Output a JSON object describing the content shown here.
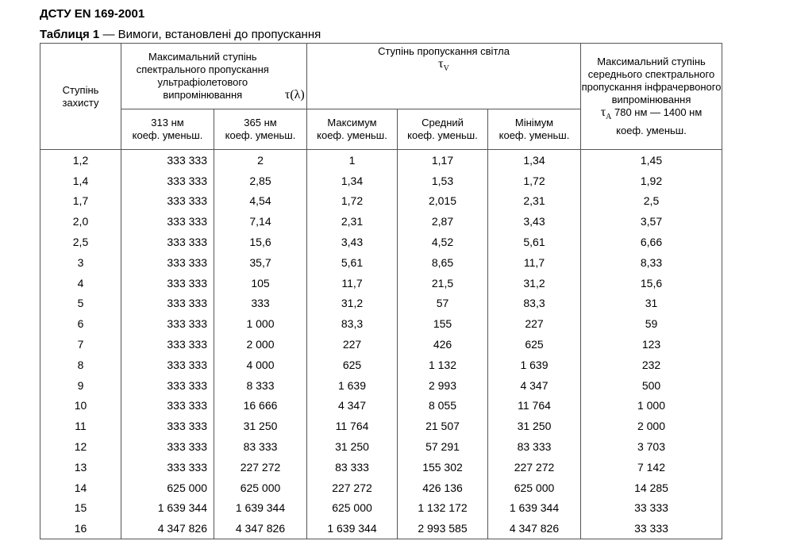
{
  "header": {
    "title": "ДСТУ EN 169-2001",
    "caption_label": "Таблиця 1",
    "caption_text": "— Вимоги, встановлені до пропускання"
  },
  "table": {
    "col_protection": "Ступінь захисту",
    "group_uv": {
      "text": "Максимальний ступінь спектрального пропускання ультрафіолетового випромінювання",
      "symbol": "τ(λ)"
    },
    "group_vis": {
      "text": "Ступінь пропускання світла",
      "symbol": "τ",
      "symbol_sub": "V"
    },
    "col_ir": {
      "text": "Максимальний ступінь середнього спектрального пропускання інфрачервоного випромінювання",
      "symbol": "τ",
      "symbol_sub": "A",
      "range": "780 нм — 1400 нм",
      "unit": "коеф. уменьш."
    },
    "sub_headers": [
      [
        "313 нм",
        "коеф. уменьш."
      ],
      [
        "365 нм",
        "коеф. уменьш."
      ],
      [
        "Максимум",
        "коеф. уменьш."
      ],
      [
        "Средний",
        "коеф. уменьш."
      ],
      [
        "Мінімум",
        "коеф. уменьш."
      ]
    ],
    "rows": [
      [
        "1,2",
        "333 333",
        "2",
        "1",
        "1,17",
        "1,34",
        "1,45"
      ],
      [
        "1,4",
        "333 333",
        "2,85",
        "1,34",
        "1,53",
        "1,72",
        "1,92"
      ],
      [
        "1,7",
        "333 333",
        "4,54",
        "1,72",
        "2,015",
        "2,31",
        "2,5"
      ],
      [
        "2,0",
        "333 333",
        "7,14",
        "2,31",
        "2,87",
        "3,43",
        "3,57"
      ],
      [
        "2,5",
        "333 333",
        "15,6",
        "3,43",
        "4,52",
        "5,61",
        "6,66"
      ],
      [
        "3",
        "333 333",
        "35,7",
        "5,61",
        "8,65",
        "11,7",
        "8,33"
      ],
      [
        "4",
        "333 333",
        "105",
        "11,7",
        "21,5",
        "31,2",
        "15,6"
      ],
      [
        "5",
        "333 333",
        "333",
        "31,2",
        "57",
        "83,3",
        "31"
      ],
      [
        "6",
        "333 333",
        "1 000",
        "83,3",
        "155",
        "227",
        "59"
      ],
      [
        "7",
        "333 333",
        "2 000",
        "227",
        "426",
        "625",
        "123"
      ],
      [
        "8",
        "333 333",
        "4 000",
        "625",
        "1 132",
        "1 639",
        "232"
      ],
      [
        "9",
        "333 333",
        "8 333",
        "1 639",
        "2 993",
        "4 347",
        "500"
      ],
      [
        "10",
        "333 333",
        "16 666",
        "4 347",
        "8 055",
        "11 764",
        "1 000"
      ],
      [
        "11",
        "333 333",
        "31 250",
        "11 764",
        "21 507",
        "31 250",
        "2 000"
      ],
      [
        "12",
        "333 333",
        "83 333",
        "31 250",
        "57 291",
        "83 333",
        "3 703"
      ],
      [
        "13",
        "333 333",
        "227 272",
        "83 333",
        "155 302",
        "227 272",
        "7 142"
      ],
      [
        "14",
        "625 000",
        "625 000",
        "227 272",
        "426 136",
        "625 000",
        "14 285"
      ],
      [
        "15",
        "1 639 344",
        "1 639 344",
        "625 000",
        "1 132 172",
        "1 639 344",
        "33 333"
      ],
      [
        "16",
        "4 347 826",
        "4 347 826",
        "1 639 344",
        "2 993 585",
        "4 347 826",
        "33 333"
      ]
    ]
  }
}
